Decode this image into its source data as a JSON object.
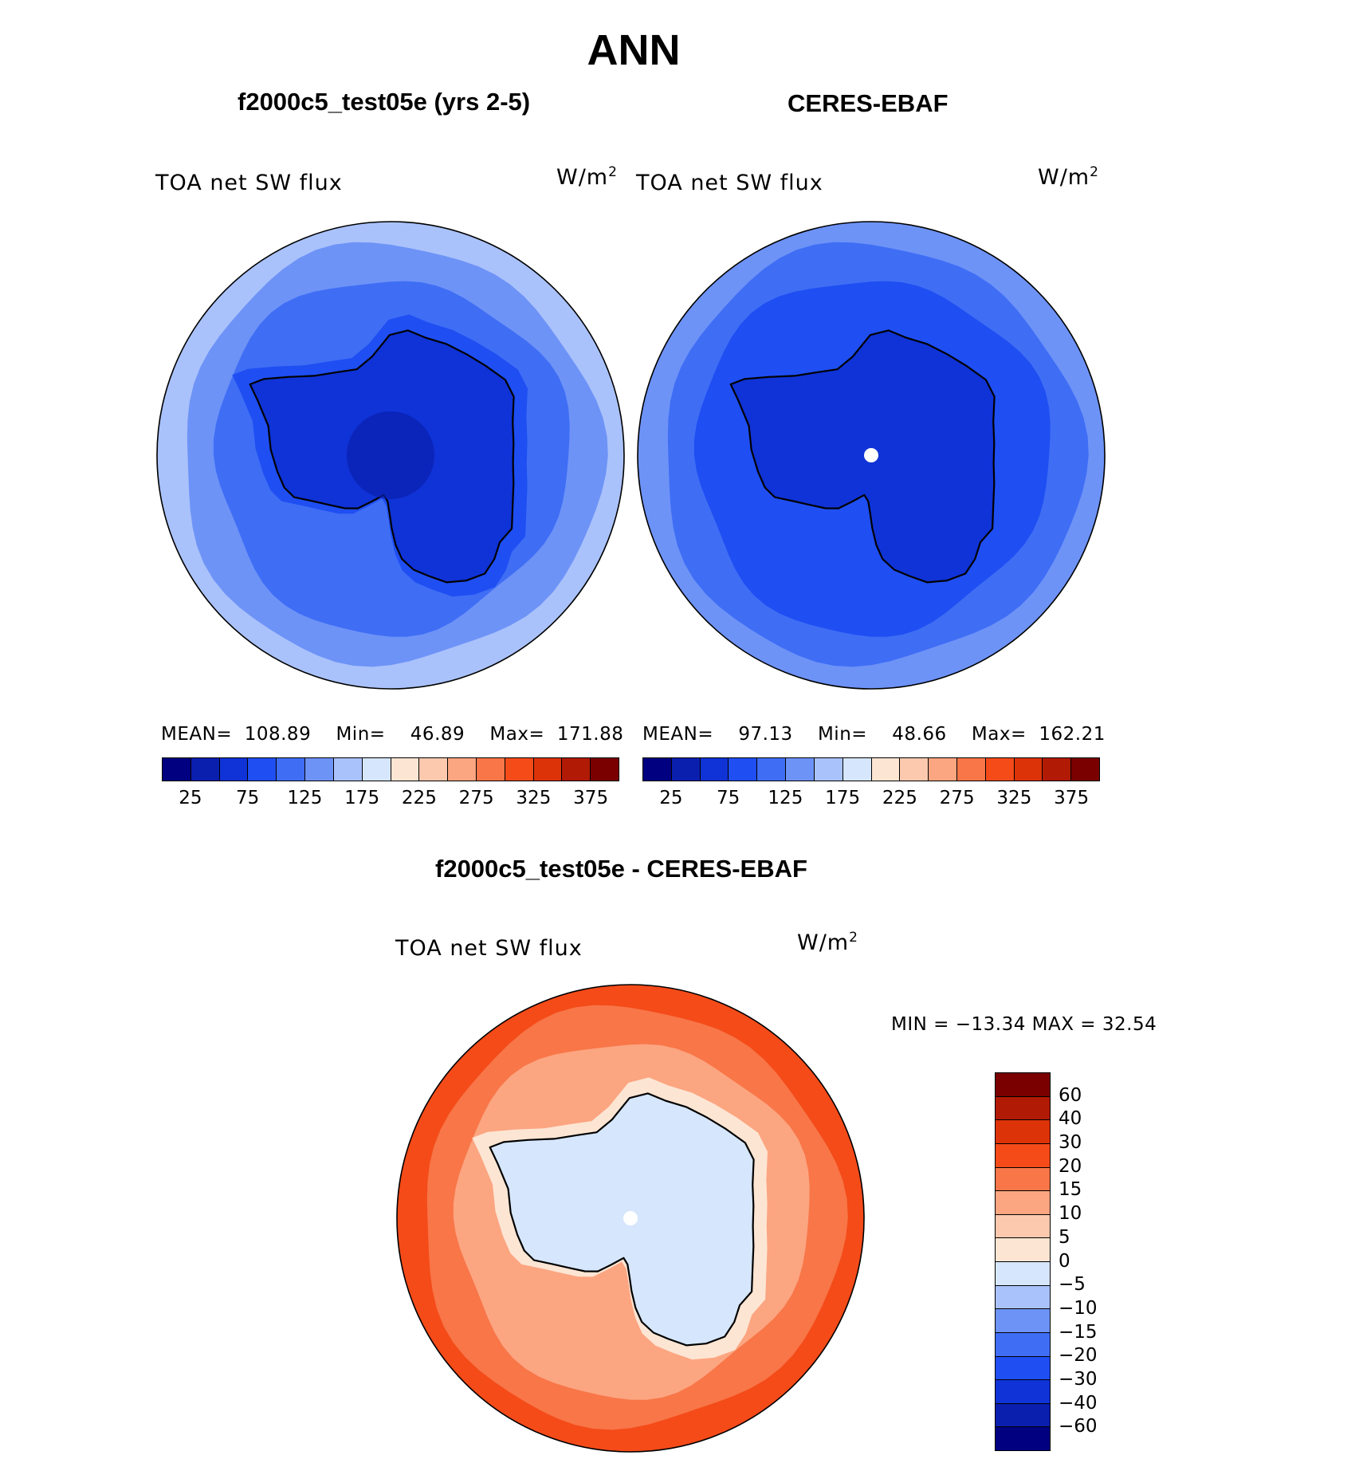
{
  "title": "ANN",
  "panels": {
    "test": {
      "title": "f2000c5_test05e (yrs 2-5)",
      "variable": "TOA net SW flux",
      "units_base": "W/m",
      "units_exp": "2",
      "stats": {
        "mean_label": "MEAN=",
        "mean": "108.89",
        "min_label": "Min=",
        "min": "46.89",
        "max_label": "Max=",
        "max": "171.88"
      }
    },
    "obs": {
      "title": "CERES-EBAF",
      "variable": "TOA net SW flux",
      "units_base": "W/m",
      "units_exp": "2",
      "stats": {
        "mean_label": "MEAN=",
        "mean": "97.13",
        "min_label": "Min=",
        "min": "48.66",
        "max_label": "Max=",
        "max": "162.21"
      }
    },
    "diff": {
      "title": "f2000c5_test05e - CERES-EBAF",
      "variable": "TOA net SW flux",
      "units_base": "W/m",
      "units_exp": "2",
      "minmax": "MIN = −13.34 MAX =   32.54"
    }
  },
  "chart_data": [
    {
      "type": "heatmap",
      "projection": "south polar stereographic",
      "name": "test",
      "colorbar": {
        "colors": [
          "#000080",
          "#0a1fae",
          "#0f33d6",
          "#1f4ef2",
          "#3f6ef5",
          "#6e93f7",
          "#aac2fb",
          "#d6e6fc",
          "#fde5d3",
          "#fcc9ae",
          "#fca581",
          "#f87648",
          "#f44b19",
          "#dd3308",
          "#b11a04",
          "#7a0000"
        ],
        "tick_labels": [
          "25",
          "75",
          "125",
          "175",
          "225",
          "275",
          "325",
          "375"
        ]
      },
      "field": {
        "ocean_far": "#aac2fb",
        "ocean_mid": "#6e93f7",
        "ocean_near": "#3f6ef5",
        "coast": "#1f4ef2",
        "continent": "#0f33d6",
        "pole": "#0a1fae"
      }
    },
    {
      "type": "heatmap",
      "projection": "south polar stereographic",
      "name": "obs",
      "colorbar": {
        "colors": [
          "#000080",
          "#0a1fae",
          "#0f33d6",
          "#1f4ef2",
          "#3f6ef5",
          "#6e93f7",
          "#aac2fb",
          "#d6e6fc",
          "#fde5d3",
          "#fcc9ae",
          "#fca581",
          "#f87648",
          "#f44b19",
          "#dd3308",
          "#b11a04",
          "#7a0000"
        ],
        "tick_labels": [
          "25",
          "75",
          "125",
          "175",
          "225",
          "275",
          "325",
          "375"
        ]
      },
      "field": {
        "ocean_far": "#6e93f7",
        "ocean_mid": "#3f6ef5",
        "ocean_near": "#1f4ef2",
        "coast": "#1f4ef2",
        "continent": "#0f33d6",
        "pole": "#ffffff"
      }
    },
    {
      "type": "heatmap",
      "projection": "south polar stereographic",
      "name": "diff",
      "colorbar": {
        "colors": [
          "#7a0000",
          "#b11a04",
          "#dd3308",
          "#f44b19",
          "#f87648",
          "#fca581",
          "#fcc9ae",
          "#fde5d3",
          "#d6e6fc",
          "#aac2fb",
          "#6e93f7",
          "#3f6ef5",
          "#1f4ef2",
          "#0f33d6",
          "#0a1fae",
          "#000080"
        ],
        "tick_labels": [
          "60",
          "40",
          "30",
          "20",
          "15",
          "10",
          "5",
          "0",
          "−5",
          "−10",
          "−15",
          "−20",
          "−30",
          "−40",
          "−60"
        ]
      },
      "field": {
        "ocean_far": "#f44b19",
        "ocean_mid": "#f87648",
        "ocean_near": "#fca581",
        "coast": "#fde5d3",
        "continent": "#d6e6fc",
        "pole": "#ffffff"
      }
    }
  ]
}
